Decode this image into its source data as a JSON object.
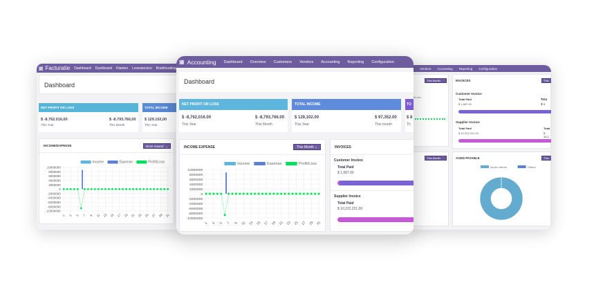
{
  "left_window": {
    "app_title": "Facturatie",
    "nav": [
      "Dashboard",
      "Dashboard",
      "Klanten",
      "Leveranciers",
      "Boekhouding"
    ],
    "page_title": "Dashboard",
    "kpi": [
      {
        "title": "NET PROFIT OR LOSS",
        "year_value": "$ -8.762.016,00",
        "year_label": "This Year",
        "month_value": "$ -8.793.766,00",
        "month_label": "This Month",
        "color": "#56b4d9"
      },
      {
        "title": "TOTAL INCOME",
        "year_value": "$ 129.102,00",
        "year_label": "This Year",
        "color": "#5b8ad6"
      }
    ],
    "chart_title": "INCOME/EXPENSE",
    "filter": "Deze maand"
  },
  "main_window": {
    "app_title": "Accounting",
    "nav": [
      "Dashboard",
      "Overview",
      "Customers",
      "Vendors",
      "Accounting",
      "Reporting",
      "Configuration"
    ],
    "page_title": "Dashboard",
    "kpi": [
      {
        "title": "NET PROFIT OR LOSS",
        "year_value": "$ -8,762,016.00",
        "year_label": "This Year",
        "month_value": "$ -8,793,766.00",
        "month_label": "This Month",
        "color": "#5fb6dc"
      },
      {
        "title": "TOTAL INCOME",
        "year_value": "$ 129,102.00",
        "year_label": "This Year",
        "month_value": "$ 97,352.00",
        "month_label": "This month",
        "color": "#5e8bdc"
      },
      {
        "title": "TO",
        "year_value": "$ 8",
        "year_label": "Th",
        "color": "#7b5ad6"
      }
    ],
    "chart_title": "INCOME EXPENSE",
    "filter": "This Month",
    "invoices": {
      "title": "INVOICES",
      "customer": {
        "label": "Customer Invoice",
        "paid_label": "Total Paid",
        "paid_value": "$ 1,687.00",
        "bar_color": "#7b62d6"
      },
      "supplier": {
        "label": "Supplier Invoice",
        "paid_label": "Total Paid",
        "paid_value": "$ 10,222,221.00",
        "bar_color": "#c65ad6"
      }
    }
  },
  "right_window": {
    "nav": [
      "Vendors",
      "Accounting",
      "Reporting",
      "Configuration"
    ],
    "filter": "This Month",
    "invoices": {
      "title": "INVOICES",
      "filter": "This",
      "customer": {
        "label": "Customer Invoice",
        "paid_label": "Total Paid",
        "paid_value": "$ 1,687.00",
        "paid_label2": "Tota",
        "paid_value2": "$ 1"
      },
      "supplier": {
        "label": "Supplier Invoice",
        "paid_label": "Total Paid",
        "paid_value": "$ 10,222,221.00",
        "paid_label2": "Total",
        "paid_value2": "$ 10,2"
      }
    },
    "aged_payable": {
      "title": "AGED PAYABLE",
      "filter": "This"
    },
    "chart_legend_fragment": "fit/Loss"
  },
  "chart_data": [
    {
      "type": "bar+line",
      "title": "INCOME EXPENSE",
      "categories": [
        1,
        2,
        3,
        4,
        5,
        6,
        7,
        8,
        9,
        10,
        11,
        12,
        13,
        14,
        15,
        16,
        17,
        18,
        19,
        20,
        21,
        22,
        23,
        24,
        25,
        26,
        27,
        28,
        29,
        30,
        31
      ],
      "x_tick_labels": [
        "1",
        "3",
        "5",
        "7",
        "9",
        "11",
        "13",
        "15",
        "17",
        "19",
        "21",
        "23",
        "25",
        "27",
        "29",
        "31"
      ],
      "y_ticks": [
        "10000000",
        "8000000",
        "6000000",
        "4000000",
        "2000000",
        "0",
        "-2000000",
        "-4000000",
        "-6000000",
        "-8000000",
        "-10000000"
      ],
      "ylim": [
        -10000000,
        10000000
      ],
      "grid": true,
      "legend": "top",
      "series": [
        {
          "name": "Income",
          "type": "bar",
          "color": "#5fb6dc",
          "values": {}
        },
        {
          "name": "Expense",
          "type": "bar",
          "color": "#5b7fd6",
          "values": {
            "6": 8800000
          }
        },
        {
          "name": "Profit/Loss",
          "type": "line",
          "color": "#00e05a",
          "values": {
            "6": -8793766
          }
        }
      ]
    },
    {
      "type": "pie",
      "title": "AGED PAYABLE",
      "donut": true,
      "legend": "top",
      "slices": [
        {
          "name": "Azure Interior",
          "value": 100,
          "color": "#63acd0"
        },
        {
          "name": "Others",
          "value": 0,
          "color": "#5b7fd6"
        }
      ]
    }
  ]
}
